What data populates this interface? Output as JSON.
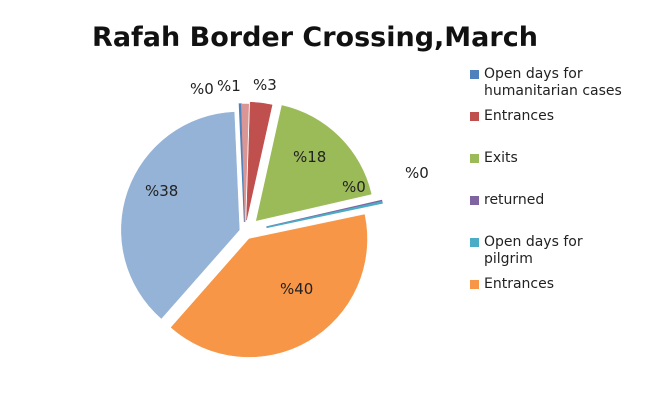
{
  "chart_data": {
    "type": "pie",
    "title": "Rafah Border Crossing,March",
    "slices": [
      {
        "name": "Entrances",
        "value": 3,
        "label": "%3",
        "color": "#c0504d",
        "legend": true
      },
      {
        "name": "Exits",
        "value": 18,
        "label": "%18",
        "color": "#9bbb59",
        "legend": true
      },
      {
        "name": "returned",
        "value": 0.15,
        "label": "%0",
        "color": "#8064a2",
        "legend": true
      },
      {
        "name": "Open days for pilgrim",
        "value": 0.15,
        "label": "%0",
        "color": "#4bacc6",
        "legend": true
      },
      {
        "name": "Entrances",
        "value": 40,
        "label": "%40",
        "color": "#f79646",
        "legend": true
      },
      {
        "name": "",
        "value": 38,
        "label": "%38",
        "color": "#95b3d7",
        "legend": false
      },
      {
        "name": "Open days for humanitarian cases",
        "value": 0.2,
        "label": "%0",
        "color": "#4f81bd",
        "legend": true
      },
      {
        "name": "",
        "value": 1,
        "label": "%1",
        "color": "#d99694",
        "legend": false
      }
    ],
    "legend": {
      "placement": "right",
      "entries": [
        {
          "label": "Open days for humanitarian cases",
          "lines": [
            "Open days for",
            "humanitarian cases"
          ],
          "color": "#4f81bd"
        },
        {
          "label": "Entrances",
          "lines": [
            "Entrances"
          ],
          "color": "#c0504d"
        },
        {
          "label": "Exits",
          "lines": [
            "Exits"
          ],
          "color": "#9bbb59"
        },
        {
          "label": "returned",
          "lines": [
            "returned"
          ],
          "color": "#8064a2"
        },
        {
          "label": "Open days for pilgrim",
          "lines": [
            "Open days for",
            "pilgrim"
          ],
          "color": "#4bacc6"
        },
        {
          "label": "Entrances",
          "lines": [
            "Entrances"
          ],
          "color": "#f79646"
        }
      ]
    }
  }
}
